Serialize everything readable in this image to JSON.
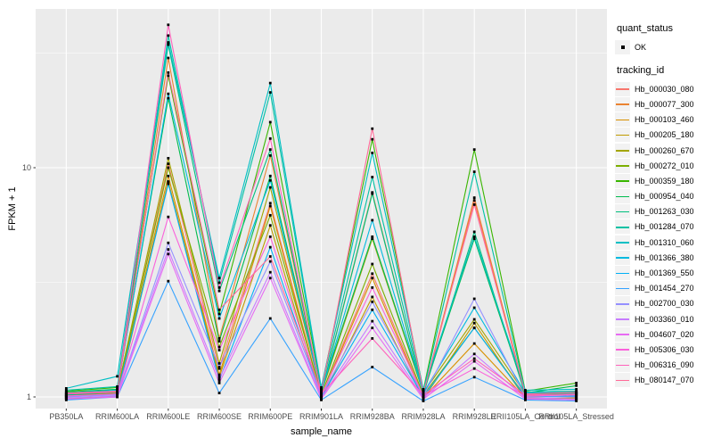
{
  "figure": {
    "background": "#FFFFFF",
    "panel_bg": "#EBEBEB",
    "grid_color": "#FFFFFF",
    "axis_text_color": "#4D4D4D",
    "tick_color": "#333333",
    "title_color": "#000000",
    "legend_key_bg": "#F2F2F2",
    "point_color": "#000000"
  },
  "legend": {
    "quant_status": {
      "title": "quant_status",
      "items": [
        {
          "label": "OK",
          "marker": "black-square"
        }
      ]
    },
    "tracking": {
      "title": "tracking_id"
    }
  },
  "chart_data": {
    "type": "line",
    "title": "",
    "xlabel": "sample_name",
    "ylabel": "FPKM + 1",
    "y_scale": "log10",
    "grid": true,
    "legend_position": "right",
    "point_marker": "black-square",
    "y_tick_labels": [
      "10",
      "1"
    ],
    "y_tick_values": [
      10,
      1
    ],
    "y_minor_values": [
      31.623,
      3.1623
    ],
    "ylim": [
      0.89,
      49
    ],
    "categories": [
      "PB350LA",
      "RRIM600LA",
      "RRIM600LE",
      "RRIM600SE",
      "RRIM600PE",
      "RRIM901LA",
      "RRIM928BA",
      "RRIM928LA",
      "RRIM928LE",
      "RRII105LA_Control",
      "RRII105LA_Stressed"
    ],
    "series": [
      {
        "name": "Hb_000030_080",
        "color": "#F8766D",
        "values": [
          1.01,
          1.02,
          10.4,
          1.33,
          7.0,
          1.01,
          3.45,
          1.01,
          7.2,
          1.01,
          1.0
        ]
      },
      {
        "name": "Hb_000077_300",
        "color": "#EA8331",
        "values": [
          1.02,
          1.04,
          30.1,
          1.8,
          11.3,
          1.04,
          7.8,
          1.03,
          7.4,
          1.03,
          1.02
        ]
      },
      {
        "name": "Hb_000103_460",
        "color": "#D89000",
        "values": [
          0.98,
          1.01,
          9.2,
          1.25,
          6.8,
          1.0,
          3.3,
          0.99,
          1.71,
          0.99,
          0.98
        ]
      },
      {
        "name": "Hb_000205_180",
        "color": "#C09B00",
        "values": [
          0.99,
          1.0,
          8.7,
          1.22,
          5.6,
          0.98,
          2.73,
          0.98,
          2.1,
          0.98,
          0.99
        ]
      },
      {
        "name": "Hb_000260_670",
        "color": "#A3A500",
        "values": [
          1.03,
          1.06,
          11.0,
          1.4,
          8.2,
          1.04,
          4.9,
          1.04,
          2.18,
          1.03,
          1.04
        ]
      },
      {
        "name": "Hb_000272_010",
        "color": "#7CAE00",
        "values": [
          1.01,
          1.04,
          10.0,
          1.65,
          6.2,
          1.02,
          3.8,
          1.02,
          2.0,
          1.01,
          1.03
        ]
      },
      {
        "name": "Hb_000359_180",
        "color": "#39B600",
        "values": [
          1.06,
          1.1,
          25.2,
          2.3,
          15.8,
          1.08,
          13.3,
          1.07,
          12.0,
          1.06,
          1.15
        ]
      },
      {
        "name": "Hb_000954_040",
        "color": "#00BB4E",
        "values": [
          1.05,
          1.08,
          20.1,
          1.75,
          9.2,
          1.06,
          5.0,
          1.05,
          4.9,
          1.04,
          1.12
        ]
      },
      {
        "name": "Hb_001263_030",
        "color": "#00BF7D",
        "values": [
          1.02,
          1.05,
          34.4,
          2.9,
          12.0,
          1.04,
          7.7,
          1.03,
          5.25,
          1.02,
          1.04
        ]
      },
      {
        "name": "Hb_001284_070",
        "color": "#00C1A3",
        "values": [
          1.07,
          1.11,
          37.7,
          3.15,
          21.3,
          1.08,
          9.1,
          1.06,
          9.6,
          1.05,
          1.06
        ]
      },
      {
        "name": "Hb_001310_060",
        "color": "#00BFC4",
        "values": [
          1.09,
          1.23,
          35.2,
          3.3,
          23.4,
          1.1,
          11.6,
          1.08,
          5.0,
          1.07,
          1.08
        ]
      },
      {
        "name": "Hb_001366_380",
        "color": "#00BAE0",
        "values": [
          1.04,
          1.07,
          21.0,
          2.2,
          8.8,
          1.05,
          5.9,
          1.04,
          2.45,
          1.04,
          1.05
        ]
      },
      {
        "name": "Hb_001369_550",
        "color": "#00B0F6",
        "values": [
          1.0,
          1.03,
          8.5,
          1.18,
          4.5,
          1.0,
          2.4,
          1.0,
          2.0,
          1.0,
          1.01
        ]
      },
      {
        "name": "Hb_001454_270",
        "color": "#35A2FF",
        "values": [
          0.97,
          1.0,
          3.2,
          1.04,
          2.2,
          0.97,
          1.35,
          0.96,
          1.22,
          0.97,
          0.96
        ]
      },
      {
        "name": "Hb_002700_030",
        "color": "#9590FF",
        "values": [
          1.0,
          1.02,
          4.7,
          1.35,
          3.9,
          1.01,
          2.6,
          1.01,
          2.68,
          1.0,
          1.0
        ]
      },
      {
        "name": "Hb_003360_010",
        "color": "#C77CFF",
        "values": [
          0.99,
          1.01,
          4.4,
          1.2,
          3.5,
          0.99,
          2.14,
          0.99,
          1.54,
          0.99,
          0.98
        ]
      },
      {
        "name": "Hb_004607_020",
        "color": "#E76BF3",
        "values": [
          0.98,
          1.0,
          4.2,
          1.15,
          3.3,
          0.98,
          2.0,
          0.98,
          1.43,
          0.98,
          0.97
        ]
      },
      {
        "name": "Hb_005306_030",
        "color": "#FA62DB",
        "values": [
          1.01,
          1.03,
          6.1,
          1.6,
          5.0,
          1.02,
          3.0,
          1.01,
          1.33,
          1.01,
          1.02
        ]
      },
      {
        "name": "Hb_006316_090",
        "color": "#FF62BC",
        "values": [
          1.03,
          1.05,
          42.0,
          3.0,
          13.4,
          1.03,
          1.8,
          1.02,
          1.47,
          1.02,
          1.03
        ]
      },
      {
        "name": "Hb_080147_070",
        "color": "#FF6A98",
        "values": [
          1.04,
          1.06,
          26.0,
          2.4,
          4.1,
          1.05,
          14.8,
          1.04,
          6.9,
          1.03,
          1.05
        ]
      }
    ]
  }
}
